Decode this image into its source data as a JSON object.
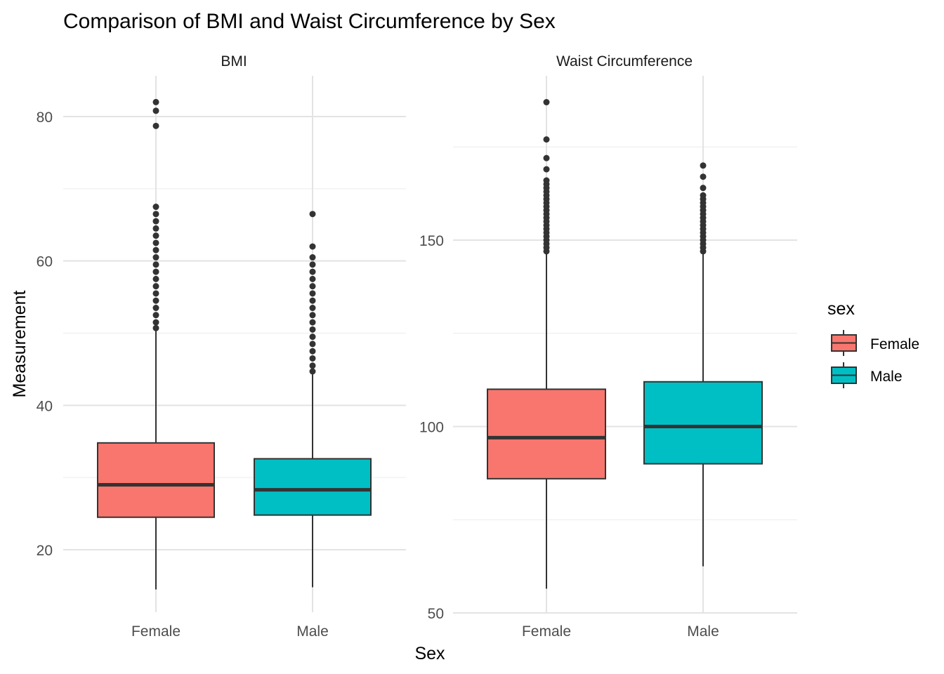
{
  "chart_data": {
    "type": "boxplot",
    "title": "Comparison of BMI and Waist Circumference by Sex",
    "xlabel": "Sex",
    "ylabel": "Measurement",
    "categories": [
      "Female",
      "Male"
    ],
    "legend": {
      "title": "sex",
      "position": "right",
      "entries": [
        {
          "label": "Female",
          "color": "#F8766D"
        },
        {
          "label": "Male",
          "color": "#00BFC4"
        }
      ]
    },
    "grid": true,
    "panels": [
      {
        "name": "BMI",
        "ylim": [
          12,
          86
        ],
        "y_ticks": [
          20,
          40,
          60,
          80
        ],
        "y_minor": [
          30,
          50,
          70
        ],
        "boxes": [
          {
            "category": "Female",
            "min": 14.5,
            "q1": 24.5,
            "median": 29.0,
            "q3": 34.8,
            "max": 50.3,
            "outliers": [
              50.7,
              51.5,
              52.5,
              53.5,
              54.5,
              55.5,
              56.5,
              57.5,
              58.5,
              59.5,
              60.5,
              61.5,
              62.5,
              63.5,
              64.5,
              65.5,
              66.5,
              67.5,
              78.7,
              80.8,
              82.0
            ]
          },
          {
            "category": "Male",
            "min": 14.8,
            "q1": 24.8,
            "median": 28.3,
            "q3": 32.6,
            "max": 44.3,
            "outliers": [
              44.7,
              45.5,
              46.5,
              47.5,
              48.5,
              49.5,
              50.5,
              51.5,
              52.5,
              53.5,
              54.5,
              55.5,
              56.5,
              57.5,
              58.5,
              59.5,
              60.5,
              62.0,
              66.5
            ]
          }
        ]
      },
      {
        "name": "Waist Circumference",
        "ylim": [
          50,
          187
        ],
        "y_ticks": [
          50,
          100,
          150
        ],
        "y_minor": [
          75,
          125,
          175
        ],
        "boxes": [
          {
            "category": "Female",
            "min": 56.5,
            "q1": 86.0,
            "median": 97.0,
            "q3": 110.0,
            "max": 146.5,
            "outliers": [
              147,
              148,
              149,
              150,
              151,
              152,
              153,
              154,
              155,
              156,
              157,
              158,
              159,
              160,
              161,
              162,
              163,
              164,
              165,
              166,
              169,
              172,
              177,
              187
            ]
          },
          {
            "category": "Male",
            "min": 62.5,
            "q1": 90.0,
            "median": 100.0,
            "q3": 112.0,
            "max": 146.5,
            "outliers": [
              147,
              148,
              149,
              150,
              151,
              152,
              153,
              154,
              155,
              156,
              157,
              158,
              159,
              160,
              161,
              162,
              164,
              167,
              170
            ]
          }
        ]
      }
    ]
  }
}
